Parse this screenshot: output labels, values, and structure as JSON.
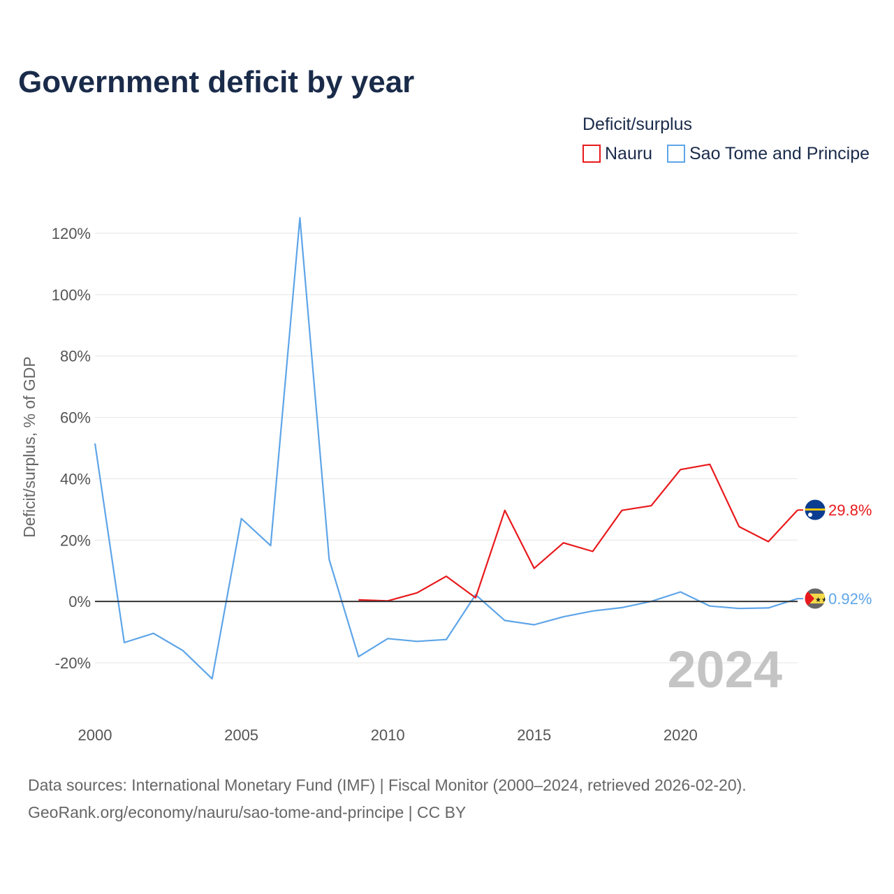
{
  "title": "Government deficit by year",
  "legend": {
    "title": "Deficit/surplus",
    "items": [
      {
        "label": "Nauru",
        "color": "#e8191c"
      },
      {
        "label": "Sao Tome and Principe",
        "color": "#5ea5e8"
      }
    ]
  },
  "year_display": "2024",
  "source": {
    "line1": "Data sources: International Monetary Fund (IMF) | Fiscal Monitor (2000–2024, retrieved 2026-02-20).",
    "line2": "GeoRank.org/economy/nauru/sao-tome-and-principe | CC BY"
  },
  "chart_data": {
    "type": "line",
    "title": "Government deficit by year",
    "xlabel": "",
    "ylabel": "Deficit/surplus, % of GDP",
    "xlim": [
      2000,
      2024
    ],
    "ylim": [
      -30,
      130
    ],
    "x_ticks": [
      2000,
      2005,
      2010,
      2015,
      2020
    ],
    "y_ticks": [
      -20,
      0,
      20,
      40,
      60,
      80,
      100,
      120
    ],
    "y_tick_labels": [
      "-20%",
      "0%",
      "20%",
      "40%",
      "60%",
      "80%",
      "100%",
      "120%"
    ],
    "grid": true,
    "legend_position": "top-right",
    "series": [
      {
        "name": "Nauru",
        "color": "#e8191c",
        "end_label": "29.8%",
        "x": [
          2009,
          2010,
          2011,
          2012,
          2013,
          2014,
          2015,
          2016,
          2017,
          2018,
          2019,
          2020,
          2021,
          2022,
          2023,
          2024
        ],
        "values": [
          0.5,
          0.2,
          2.8,
          8.2,
          1.2,
          29.7,
          10.8,
          19.1,
          16.3,
          29.7,
          31.2,
          43.0,
          44.7,
          24.4,
          19.5,
          29.8
        ]
      },
      {
        "name": "Sao Tome and Principe",
        "color": "#5ea5e8",
        "end_label": "0.92%",
        "x": [
          2000,
          2001,
          2002,
          2003,
          2004,
          2005,
          2006,
          2007,
          2008,
          2009,
          2010,
          2011,
          2012,
          2013,
          2014,
          2015,
          2016,
          2017,
          2018,
          2019,
          2020,
          2021,
          2022,
          2023,
          2024
        ],
        "values": [
          51.5,
          -13.4,
          -10.4,
          -16.0,
          -25.2,
          27.0,
          18.2,
          125.0,
          13.7,
          -18.0,
          -12.1,
          -13.0,
          -12.4,
          2.2,
          -6.2,
          -7.6,
          -5.0,
          -3.1,
          -2.0,
          0.0,
          3.1,
          -1.5,
          -2.3,
          -2.1,
          0.92
        ]
      }
    ]
  }
}
